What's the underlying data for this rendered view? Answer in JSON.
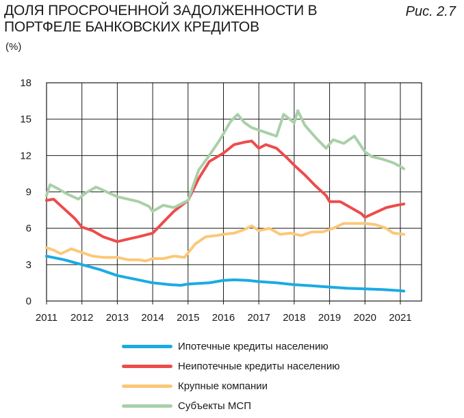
{
  "header": {
    "title_line1": "ДОЛЯ ПРОСРОЧЕННОЙ ЗАДОЛЖЕННОСТИ В",
    "title_line2": "ПОРТФЕЛЕ БАНКОВСКИХ КРЕДИТОВ",
    "unit": "(%)",
    "figure_label": "Рис. 2.7"
  },
  "chart_data": {
    "type": "line",
    "title": "ДОЛЯ ПРОСРОЧЕННОЙ ЗАДОЛЖЕННОСТИ В ПОРТФЕЛЕ БАНКОВСКИХ КРЕДИТОВ",
    "ylabel": "(%)",
    "xlabel": "",
    "xlim": [
      2011,
      2021.6
    ],
    "ylim": [
      0,
      18
    ],
    "y_ticks": [
      "0",
      "3",
      "6",
      "9",
      "12",
      "15",
      "18"
    ],
    "x_ticks": [
      "2011",
      "2012",
      "2013",
      "2014",
      "2015",
      "2016",
      "2017",
      "2018",
      "2019",
      "2020",
      "2021"
    ],
    "grid": "both",
    "legend_position": "bottom",
    "series": [
      {
        "name": "Ипотечные кредиты населению",
        "color": "#1aabe3",
        "x": [
          2011,
          2011.5,
          2012,
          2012.5,
          2013,
          2013.5,
          2014,
          2014.5,
          2014.8,
          2015,
          2015.3,
          2015.6,
          2016,
          2016.3,
          2016.7,
          2017,
          2017.5,
          2018,
          2018.5,
          2019,
          2019.5,
          2020,
          2020.5,
          2021,
          2021.1
        ],
        "values": [
          3.7,
          3.4,
          3.0,
          2.6,
          2.1,
          1.8,
          1.5,
          1.35,
          1.3,
          1.4,
          1.45,
          1.5,
          1.7,
          1.75,
          1.7,
          1.6,
          1.5,
          1.35,
          1.25,
          1.15,
          1.05,
          1.0,
          0.95,
          0.85,
          0.82
        ]
      },
      {
        "name": "Неипотечные кредиты населению",
        "color": "#ee4b4b",
        "x": [
          2011,
          2011.2,
          2011.5,
          2011.8,
          2012,
          2012.3,
          2012.6,
          2013,
          2013.3,
          2013.6,
          2014,
          2014.3,
          2014.6,
          2015,
          2015.3,
          2015.6,
          2016,
          2016.3,
          2016.6,
          2016.8,
          2017,
          2017.2,
          2017.5,
          2017.8,
          2018,
          2018.3,
          2018.6,
          2018.9,
          2019,
          2019.3,
          2019.6,
          2019.9,
          2020,
          2020.3,
          2020.6,
          2020.9,
          2021.1
        ],
        "values": [
          8.3,
          8.4,
          7.6,
          6.8,
          6.1,
          5.8,
          5.3,
          4.9,
          5.1,
          5.3,
          5.6,
          6.5,
          7.4,
          8.3,
          10.1,
          11.5,
          12.2,
          12.9,
          13.1,
          13.2,
          12.6,
          12.9,
          12.6,
          11.8,
          11.2,
          10.4,
          9.5,
          8.7,
          8.2,
          8.2,
          7.7,
          7.2,
          6.9,
          7.3,
          7.7,
          7.9,
          8.0
        ]
      },
      {
        "name": "Крупные компании",
        "color": "#fbc878",
        "x": [
          2011,
          2011.2,
          2011.4,
          2011.7,
          2012,
          2012.3,
          2012.6,
          2013,
          2013.3,
          2013.6,
          2013.8,
          2014,
          2014.3,
          2014.6,
          2014.9,
          2015.2,
          2015.5,
          2015.8,
          2016,
          2016.3,
          2016.6,
          2016.8,
          2017,
          2017.3,
          2017.6,
          2017.9,
          2018.2,
          2018.5,
          2018.8,
          2019.1,
          2019.4,
          2019.7,
          2020,
          2020.3,
          2020.6,
          2020.8,
          2021.1
        ],
        "values": [
          4.4,
          4.2,
          3.9,
          4.3,
          4.0,
          3.7,
          3.6,
          3.6,
          3.4,
          3.4,
          3.3,
          3.5,
          3.5,
          3.7,
          3.6,
          4.7,
          5.3,
          5.4,
          5.5,
          5.6,
          5.9,
          6.2,
          5.8,
          6.0,
          5.5,
          5.6,
          5.4,
          5.7,
          5.7,
          6.0,
          6.4,
          6.4,
          6.4,
          6.3,
          6.0,
          5.6,
          5.5
        ]
      },
      {
        "name": "Субъекты МСП",
        "color": "#a9d0a9",
        "x": [
          2011,
          2011.1,
          2011.3,
          2011.6,
          2011.9,
          2012.1,
          2012.4,
          2012.7,
          2013,
          2013.3,
          2013.6,
          2013.9,
          2014,
          2014.3,
          2014.6,
          2015,
          2015.3,
          2015.6,
          2015.9,
          2016,
          2016.2,
          2016.4,
          2016.6,
          2016.8,
          2017,
          2017.2,
          2017.5,
          2017.7,
          2018,
          2018.1,
          2018.3,
          2018.6,
          2018.9,
          2019.1,
          2019.4,
          2019.7,
          2020,
          2020.2,
          2020.5,
          2020.8,
          2021,
          2021.1
        ],
        "values": [
          8.7,
          9.6,
          9.3,
          8.8,
          8.4,
          8.9,
          9.4,
          9.0,
          8.6,
          8.4,
          8.2,
          7.8,
          7.4,
          7.9,
          7.7,
          8.3,
          10.8,
          12.0,
          13.3,
          13.8,
          14.8,
          15.4,
          14.7,
          14.3,
          14.1,
          13.9,
          13.6,
          15.4,
          14.7,
          15.7,
          14.5,
          13.5,
          12.6,
          13.3,
          13.0,
          13.6,
          12.3,
          11.9,
          11.7,
          11.4,
          11.1,
          10.9
        ]
      }
    ]
  }
}
